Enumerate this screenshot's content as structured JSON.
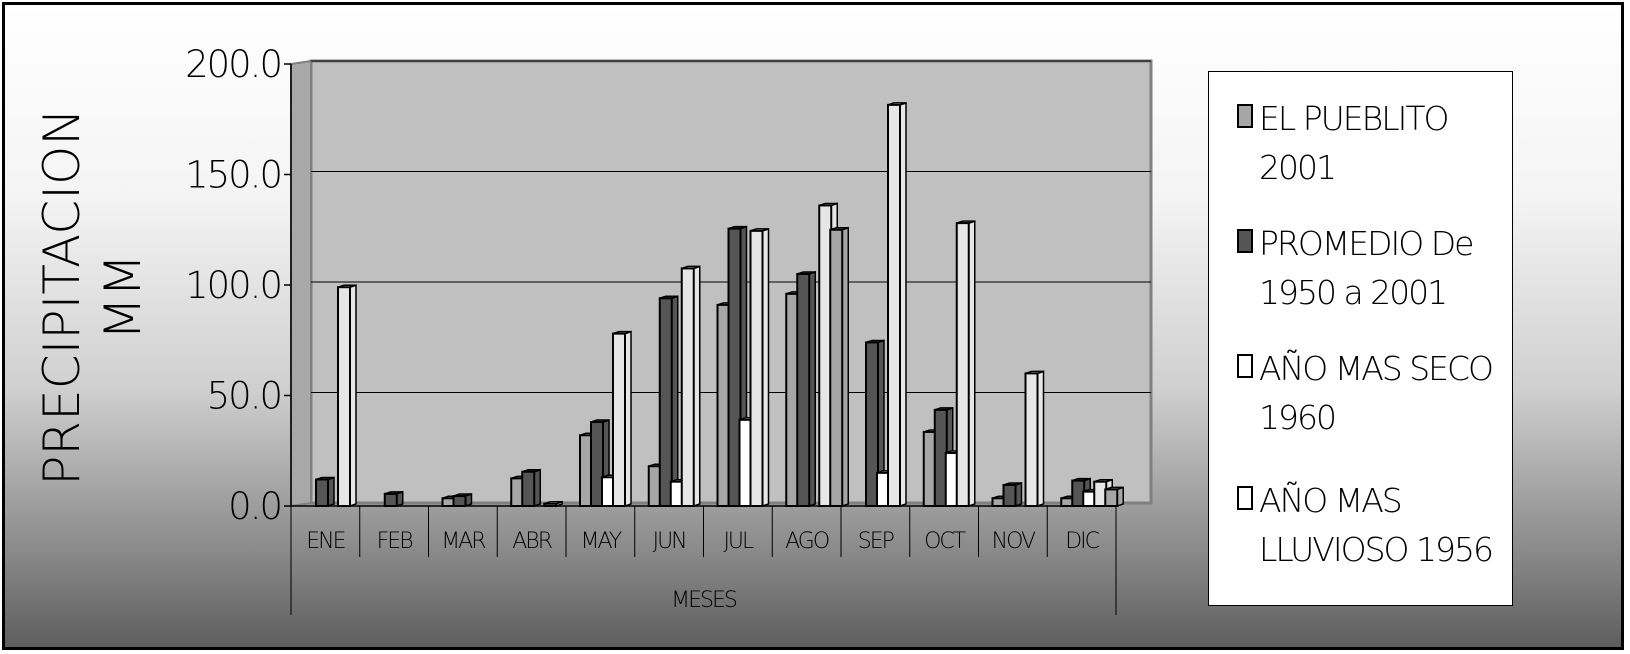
{
  "chart_data": {
    "type": "bar",
    "xlabel": "MESES",
    "ylabel": "PRECIPITACION MM",
    "ylim": [
      0,
      200
    ],
    "yticks": [
      "0.0",
      "50.0",
      "100.0",
      "150.0",
      "200.0"
    ],
    "grid": true,
    "legend_position": "right",
    "categories": [
      "ENE",
      "FEB",
      "MAR",
      "ABR",
      "MAY",
      "JUN",
      "JUL",
      "AGO",
      "SEP",
      "OCT",
      "NOV",
      "DIC"
    ],
    "series": [
      {
        "name": "EL PUEBLITO 2001",
        "color": "#a6a6a6",
        "values": [
          0.0,
          0.0,
          3.5,
          12.5,
          32.0,
          18.0,
          91.0,
          96.0,
          0.0,
          33.5,
          3.5,
          3.5
        ]
      },
      {
        "name": "PROMEDIO De 1950 a 2001",
        "color": "#555555",
        "values": [
          12.0,
          5.5,
          4.5,
          15.5,
          38.0,
          94.0,
          125.5,
          105.0,
          74.0,
          43.5,
          9.5,
          11.5
        ]
      },
      {
        "name": "AÑO MAS SECO 1960",
        "color": "#ffffff",
        "values": [
          0.0,
          0.0,
          0.0,
          0.0,
          13.0,
          11.0,
          39.0,
          0.0,
          15.0,
          24.0,
          0.0,
          6.5
        ]
      },
      {
        "name": "AÑO MAS LLUVIOSO 1956",
        "color": "#e6e6e6",
        "values": [
          99.0,
          0.0,
          0.0,
          1.0,
          78.0,
          107.5,
          124.5,
          136.0,
          181.5,
          128.0,
          60.0,
          11.0
        ]
      },
      {
        "name": "",
        "color": "#a6a6a6",
        "values": [
          0.0,
          0.0,
          0.0,
          0.0,
          0.0,
          0.0,
          0.0,
          125.0,
          0.0,
          0.0,
          0.0,
          7.5
        ]
      }
    ]
  },
  "legend": {
    "items": [
      {
        "label": "EL PUEBLITO\n2001",
        "color": "#a6a6a6"
      },
      {
        "label": "PROMEDIO De\n1950   a 2001",
        "color": "#555555"
      },
      {
        "label": "AÑO MAS SECO\n1960",
        "color": "#ffffff"
      },
      {
        "label": "AÑO MAS\nLLUVIOSO 1956",
        "color": "#ffffff"
      }
    ]
  }
}
